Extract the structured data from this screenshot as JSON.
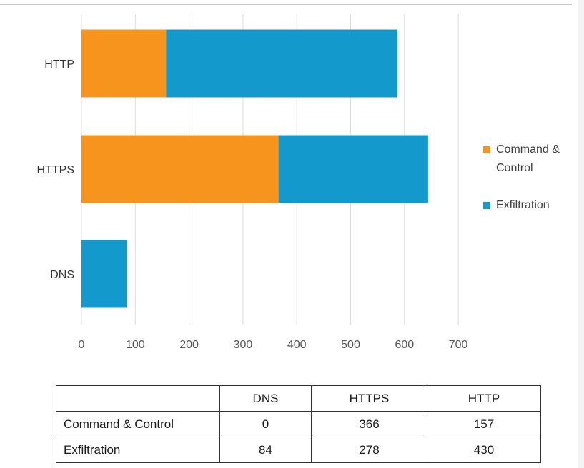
{
  "chart_data": {
    "type": "bar",
    "orientation": "horizontal",
    "stacked": true,
    "categories": [
      "HTTP",
      "HTTPS",
      "DNS"
    ],
    "series": [
      {
        "name": "Command & Control",
        "values": [
          157,
          366,
          0
        ],
        "color": "#f7941d"
      },
      {
        "name": "Exfiltration",
        "values": [
          430,
          278,
          84
        ],
        "color": "#1499cc"
      }
    ],
    "xlim": [
      0,
      700
    ],
    "xticks": [
      0,
      100,
      200,
      300,
      400,
      500,
      600,
      700
    ],
    "grid": true,
    "legend_position": "right",
    "legend": [
      {
        "label_lines": [
          "Command &",
          "Control"
        ],
        "color": "#f7941d"
      },
      {
        "label_lines": [
          "Exfiltration"
        ],
        "color": "#1499cc"
      }
    ]
  },
  "table": {
    "headers": [
      "",
      "DNS",
      "HTTPS",
      "HTTP"
    ],
    "rows": [
      [
        "Command & Control",
        "0",
        "366",
        "157"
      ],
      [
        "Exfiltration",
        "84",
        "278",
        "430"
      ]
    ]
  }
}
